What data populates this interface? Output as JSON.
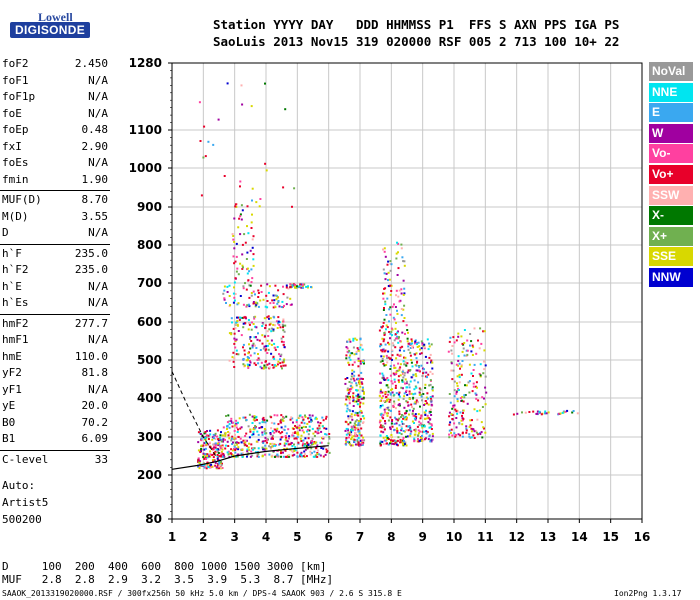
{
  "logo": {
    "top": "Lowell",
    "bottom": "DIGISONDE"
  },
  "header": {
    "row1": "Station YYYY DAY   DDD HHMMSS P1  FFS S AXN PPS IGA PS",
    "row2": "SaoLuis 2013 Nov15 319 020000 RSF 005 2 713 100 10+ 22"
  },
  "params": [
    {
      "name": "foF2",
      "value": "2.450"
    },
    {
      "name": "foF1",
      "value": "N/A"
    },
    {
      "name": "foF1p",
      "value": "N/A"
    },
    {
      "name": "foE",
      "value": "N/A"
    },
    {
      "name": "foEp",
      "value": "0.48"
    },
    {
      "name": "fxI",
      "value": "2.90"
    },
    {
      "name": "foEs",
      "value": "N/A"
    },
    {
      "name": "fmin",
      "value": "1.90"
    },
    {
      "name": "MUF(D)",
      "value": "8.70"
    },
    {
      "name": "M(D)",
      "value": "3.55"
    },
    {
      "name": "D",
      "value": "N/A"
    },
    {
      "name": "h`F",
      "value": "235.0"
    },
    {
      "name": "h`F2",
      "value": "235.0"
    },
    {
      "name": "h`E",
      "value": "N/A"
    },
    {
      "name": "h`Es",
      "value": "N/A"
    },
    {
      "name": "hmF2",
      "value": "277.7"
    },
    {
      "name": "hmF1",
      "value": "N/A"
    },
    {
      "name": "hmE",
      "value": "110.0"
    },
    {
      "name": "yF2",
      "value": "81.8"
    },
    {
      "name": "yF1",
      "value": "N/A"
    },
    {
      "name": "yE",
      "value": "20.0"
    },
    {
      "name": "B0",
      "value": "70.2"
    },
    {
      "name": "B1",
      "value": "6.09"
    },
    {
      "name": "C-level",
      "value": "33"
    }
  ],
  "auto": {
    "label": "Auto:",
    "artist": "Artist5",
    "code": "500200"
  },
  "legend": [
    {
      "label": "NoVal",
      "color": "#999999"
    },
    {
      "label": "NNE",
      "color": "#00e5f0"
    },
    {
      "label": "E",
      "color": "#3aa8f0"
    },
    {
      "label": "W",
      "color": "#a000a0"
    },
    {
      "label": "Vo-",
      "color": "#ff40a0"
    },
    {
      "label": "Vo+",
      "color": "#e8002a"
    },
    {
      "label": "SSW",
      "color": "#ffb0b0"
    },
    {
      "label": "X-",
      "color": "#007800"
    },
    {
      "label": "X+",
      "color": "#70b050"
    },
    {
      "label": "SSE",
      "color": "#d8d800"
    },
    {
      "label": "NNW",
      "color": "#0000d0"
    }
  ],
  "footer": {
    "d_row": "D     100  200  400  600  800 1000 1500 3000 [km]",
    "muf_row": "MUF   2.8  2.8  2.9  3.2  3.5  3.9  5.3  8.7 [MHz]",
    "file_info": "SAAOK_2013319020000.RSF / 300fx256h 50 kHz 5.0 km / DPS-4 SAAOK 903 / 2.6 S 315.8 E",
    "version": "Ion2Png 1.3.17"
  },
  "chart_data": {
    "type": "scatter",
    "xlim": [
      1,
      16
    ],
    "ylim": [
      80,
      1280
    ],
    "x_ticks": [
      "1",
      "2",
      "3",
      "4",
      "5",
      "6",
      "7",
      "8",
      "9",
      "10",
      "11",
      "12",
      "13",
      "14",
      "15",
      "16"
    ],
    "y_ticks": [
      "80",
      "200",
      "300",
      "400",
      "500",
      "600",
      "700",
      "800",
      "900",
      "1000",
      "1100",
      "1280"
    ],
    "y_tick_values": [
      80,
      200,
      300,
      400,
      500,
      600,
      700,
      800,
      900,
      1000,
      1100,
      1280
    ],
    "grid": true,
    "legend_position": "right",
    "trace_clusters": [
      {
        "x_range": [
          1.8,
          2.6
        ],
        "y_range": [
          220,
          320
        ],
        "count": 220
      },
      {
        "x_range": [
          2.6,
          6.0
        ],
        "y_range": [
          250,
          360
        ],
        "count": 500
      },
      {
        "x_range": [
          2.8,
          4.6
        ],
        "y_range": [
          480,
          620
        ],
        "count": 220
      },
      {
        "x_range": [
          2.6,
          4.8
        ],
        "y_range": [
          640,
          700
        ],
        "count": 90
      },
      {
        "x_range": [
          4.6,
          5.5
        ],
        "y_range": [
          690,
          700
        ],
        "count": 40
      },
      {
        "x_range": [
          2.9,
          3.6
        ],
        "y_range": [
          700,
          920
        ],
        "count": 60
      },
      {
        "x_range": [
          6.5,
          7.1
        ],
        "y_range": [
          280,
          560
        ],
        "count": 260
      },
      {
        "x_range": [
          7.6,
          8.5
        ],
        "y_range": [
          280,
          600
        ],
        "count": 360
      },
      {
        "x_range": [
          7.7,
          8.4
        ],
        "y_range": [
          600,
          810
        ],
        "count": 80
      },
      {
        "x_range": [
          8.5,
          9.3
        ],
        "y_range": [
          290,
          560
        ],
        "count": 260
      },
      {
        "x_range": [
          9.8,
          11.0
        ],
        "y_range": [
          300,
          590
        ],
        "count": 200
      },
      {
        "x_range": [
          11.8,
          14.0
        ],
        "y_range": [
          360,
          370
        ],
        "count": 30
      },
      {
        "x_range": [
          1.8,
          5.0
        ],
        "y_range": [
          900,
          1270
        ],
        "count": 30
      }
    ],
    "fitted_profile": [
      {
        "x": 1.0,
        "y": 215
      },
      {
        "x": 1.8,
        "y": 225
      },
      {
        "x": 2.4,
        "y": 235
      },
      {
        "x": 3.0,
        "y": 250
      },
      {
        "x": 4.0,
        "y": 262
      },
      {
        "x": 5.0,
        "y": 270
      },
      {
        "x": 6.0,
        "y": 277
      }
    ],
    "dashed_curve": [
      {
        "x": 1.0,
        "y": 470
      },
      {
        "x": 1.5,
        "y": 380
      },
      {
        "x": 2.0,
        "y": 300
      },
      {
        "x": 2.4,
        "y": 250
      }
    ]
  }
}
